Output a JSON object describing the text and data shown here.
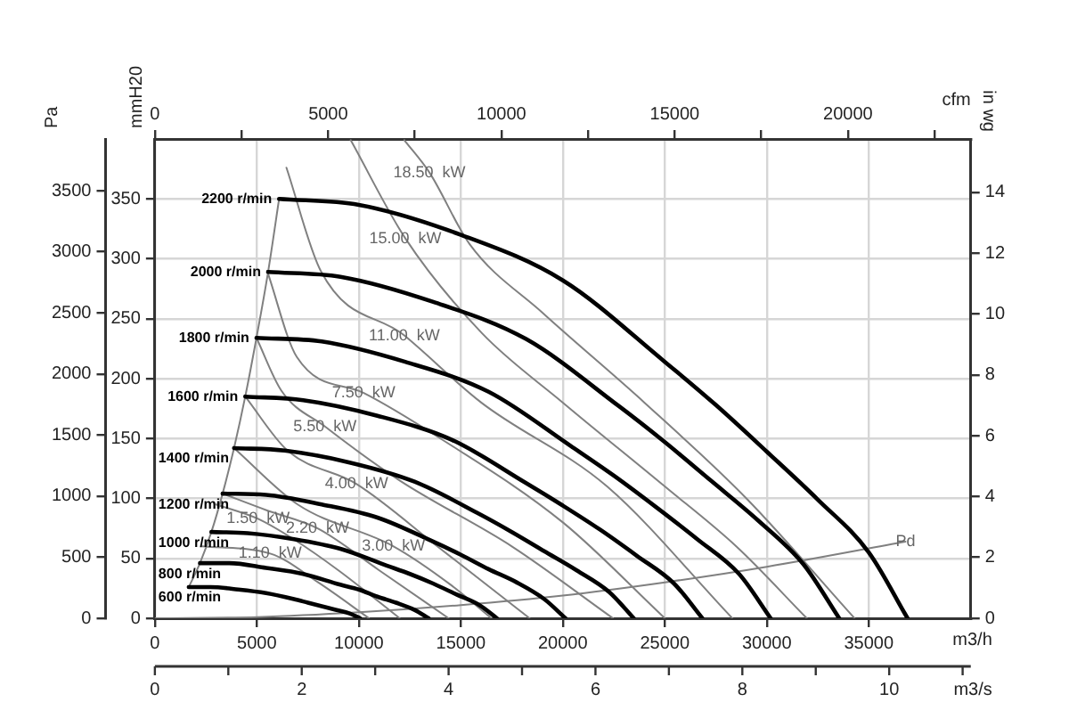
{
  "chart_data": {
    "type": "line",
    "xlabel": "m3/h",
    "x2label": "cfm",
    "ylabel": "mmH20",
    "y2label": "Pa",
    "y3label": "in wg",
    "xlim": [
      0,
      40000
    ],
    "xticks": [
      0,
      5000,
      10000,
      15000,
      20000,
      25000,
      30000,
      35000
    ],
    "x2lim": [
      0,
      23543
    ],
    "x2ticks": [
      0,
      {
        "value": 2500,
        "label": null
      },
      5000,
      {
        "value": 7500,
        "label": null
      },
      10000,
      {
        "value": 12500,
        "label": null
      },
      15000,
      {
        "value": 17500,
        "label": null
      },
      20000,
      {
        "value": 22500,
        "label": null
      }
    ],
    "ylim": [
      0,
      400
    ],
    "yticks": [
      0,
      50,
      100,
      150,
      200,
      250,
      300,
      350
    ],
    "y2lim": [
      0,
      3924
    ],
    "y2ticks": [
      0,
      500,
      1000,
      1500,
      2000,
      2500,
      3000,
      3500
    ],
    "y3lim": [
      0,
      15.75
    ],
    "y3ticks": [
      0,
      2,
      4,
      6,
      8,
      10,
      12,
      14
    ],
    "grid": true,
    "series": [
      {
        "name": "2200 r/min",
        "color": "#000000",
        "x": [
          6090,
          10000,
          15000,
          20000,
          25000,
          27500,
          30000,
          32500,
          35000,
          36900
        ],
        "values": [
          350,
          345,
          320,
          282,
          214,
          178,
          139,
          99,
          55,
          0
        ]
      },
      {
        "name": "2000 r/min",
        "color": "#000000",
        "x": [
          5550,
          9100,
          13650,
          18200,
          22750,
          25000,
          27250,
          29550,
          31800,
          33550
        ],
        "values": [
          289,
          285,
          264,
          233,
          177,
          147,
          115,
          82,
          45,
          0
        ]
      },
      {
        "name": "1800 r/min",
        "color": "#000000",
        "x": [
          4980,
          8180,
          12270,
          16360,
          20450,
          22500,
          24550,
          26590,
          28640,
          30190
        ],
        "values": [
          234,
          231,
          214,
          189,
          143,
          119,
          93,
          66,
          37,
          0
        ]
      },
      {
        "name": "1600 r/min",
        "color": "#000000",
        "x": [
          4430,
          7270,
          10910,
          14550,
          18180,
          20000,
          21820,
          23640,
          25450,
          26840
        ],
        "values": [
          185,
          182,
          169,
          149,
          113,
          94,
          74,
          52,
          29,
          0
        ]
      },
      {
        "name": "1400 r/min",
        "color": "#000000",
        "x": [
          3880,
          6360,
          9550,
          12730,
          15910,
          17500,
          19090,
          20680,
          22270,
          23480
        ],
        "values": [
          142,
          140,
          130,
          114,
          87,
          72,
          56,
          40,
          22,
          0
        ]
      },
      {
        "name": "1200 r/min",
        "color": "#000000",
        "x": [
          3320,
          5450,
          8180,
          10910,
          13640,
          15000,
          16360,
          17730,
          19090,
          20130
        ],
        "values": [
          104,
          103,
          95,
          84,
          64,
          53,
          41,
          30,
          16,
          0
        ]
      },
      {
        "name": "1000 r/min",
        "color": "#000000",
        "x": [
          2770,
          4550,
          6820,
          9090,
          11360,
          12500,
          13640,
          14770,
          15910,
          16770
        ],
        "values": [
          72,
          71,
          66,
          58,
          44,
          37,
          29,
          20,
          11,
          0
        ]
      },
      {
        "name": "800 r/min",
        "color": "#000000",
        "x": [
          2210,
          3640,
          5450,
          7270,
          9090,
          10000,
          10910,
          11820,
          12730,
          13420
        ],
        "values": [
          46,
          46,
          42,
          37,
          28,
          24,
          18,
          13,
          7,
          0
        ]
      },
      {
        "name": "600 r/min",
        "color": "#000000",
        "x": [
          1660,
          2730,
          4090,
          5450,
          6820,
          7500,
          8180,
          8860,
          9550,
          10060
        ],
        "values": [
          26,
          26,
          24,
          21,
          16,
          13,
          10,
          7,
          4,
          0
        ]
      },
      {
        "color": "#808080",
        "x": [
          1660,
          2210,
          2770,
          3320,
          3880,
          4430,
          4980,
          5550,
          6090
        ],
        "values": [
          26,
          46,
          72,
          104,
          142,
          185,
          234,
          289,
          350
        ]
      },
      {
        "color": "#808080",
        "x": [
          12230,
          13460,
          15440,
          19000,
          24000,
          29000,
          34300
        ],
        "values": [
          399,
          372,
          312,
          255,
          180,
          100,
          0
        ]
      },
      {
        "color": "#808080",
        "x": [
          9600,
          12280,
          16030,
          20000,
          25000,
          28500,
          31960
        ],
        "values": [
          399,
          317,
          238,
          180,
          110,
          60,
          0
        ]
      },
      {
        "color": "#808080",
        "x": [
          6450,
          8130,
          12230,
          16000,
          22170,
          28310
        ],
        "values": [
          376,
          290,
          236,
          180,
          110,
          0
        ]
      },
      {
        "color": "#808080",
        "x": [
          5500,
          6960,
          10240,
          14000,
          20000,
          25000
        ],
        "values": [
          290,
          218,
          188,
          150,
          80,
          0
        ]
      },
      {
        "color": "#808080",
        "x": [
          4980,
          6200,
          8340,
          12000,
          17500,
          22460
        ],
        "values": [
          234,
          190,
          160,
          115,
          60,
          0
        ]
      },
      {
        "color": "#808080",
        "x": [
          4430,
          6500,
          9890,
          14000,
          18370
        ],
        "values": [
          185,
          140,
          112,
          58,
          0
        ]
      },
      {
        "color": "#808080",
        "x": [
          3880,
          7000,
          11700,
          14500,
          16500
        ],
        "values": [
          142,
          95,
          60,
          28,
          0
        ]
      },
      {
        "color": "#808080",
        "x": [
          3320,
          5500,
          7980,
          11000,
          14400
        ],
        "values": [
          104,
          90,
          75,
          40,
          0
        ]
      },
      {
        "color": "#808080",
        "x": [
          3000,
          5060,
          6800,
          9000,
          12000
        ],
        "values": [
          95,
          83,
          66,
          40,
          0
        ]
      },
      {
        "color": "#808080",
        "x": [
          2300,
          5650,
          8000,
          10500
        ],
        "values": [
          60,
          54,
          30,
          0
        ]
      },
      {
        "color": "#808080",
        "x": [
          0,
          5000,
          10000,
          15000,
          20000,
          25000,
          30000,
          36800
        ],
        "values": [
          0,
          1,
          5,
          11,
          19,
          30,
          43,
          64
        ]
      }
    ],
    "annotations": [
      {
        "text": "18.50  kW",
        "x": 13460,
        "y": 372
      },
      {
        "text": "15.00  kW",
        "x": 12280,
        "y": 317
      },
      {
        "text": "11.00  kW",
        "x": 12230,
        "y": 236
      },
      {
        "text": "7.50  kW",
        "x": 10240,
        "y": 188
      },
      {
        "text": "5.50  kW",
        "x": 8340,
        "y": 160
      },
      {
        "text": "4.00  kW",
        "x": 9890,
        "y": 112
      },
      {
        "text": "3.00  kW",
        "x": 11700,
        "y": 60
      },
      {
        "text": "2.20  kW",
        "x": 7980,
        "y": 75
      },
      {
        "text": "1.50  kW",
        "x": 5060,
        "y": 83
      },
      {
        "text": "1.10  kW",
        "x": 5650,
        "y": 54
      },
      {
        "text": "Pd",
        "x": 36800,
        "y": 64
      },
      "0",
      "2",
      "4",
      "6",
      "8",
      "10",
      "m3/s"
    ]
  }
}
